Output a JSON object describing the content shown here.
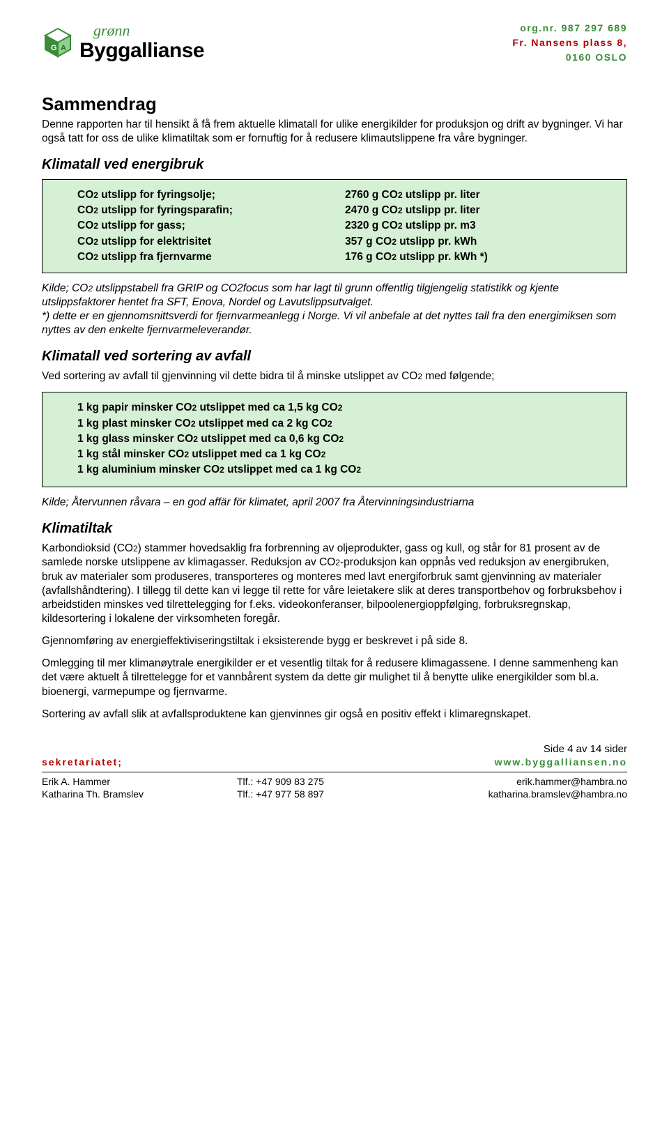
{
  "header": {
    "logo_script": "grønn",
    "logo_main": "Byggallianse",
    "org_line1": "org.nr. 987 297 689",
    "org_line2": "Fr. Nansens plass 8,",
    "org_line3": "0160 OSLO"
  },
  "title": "Sammendrag",
  "intro": "Denne rapporten har til hensikt å få frem aktuelle klimatall for ulike energikilder for produksjon og drift av bygninger.  Vi har også tatt for oss de ulike klimatiltak som er fornuftig for å redusere klimautslippene fra våre bygninger.",
  "sec1_title": "Klimatall ved energibruk",
  "box1": {
    "rows": [
      {
        "l": "CO",
        "l2": "2",
        "l3": " utslipp for fyringsolje;",
        "r1": "2760 g CO",
        "r2": "2",
        "r3": " utslipp pr. liter"
      },
      {
        "l": "CO",
        "l2": "2",
        "l3": " utslipp for fyringsparafin;",
        "r1": "2470 g CO",
        "r2": "2",
        "r3": " utslipp pr. liter"
      },
      {
        "l": "CO",
        "l2": "2",
        "l3": " utslipp for gass;",
        "r1": "2320 g CO",
        "r2": "2",
        "r3": " utslipp pr. m3"
      },
      {
        "l": "CO",
        "l2": "2",
        "l3": " utslipp for elektrisitet",
        "r1": "357 g CO",
        "r2": "2",
        "r3": " utslipp pr. kWh"
      },
      {
        "l": "CO",
        "l2": "2",
        "l3": " utslipp fra fjernvarme",
        "r1": "176 g CO",
        "r2": "2",
        "r3": " utslipp pr. kWh *)"
      }
    ]
  },
  "note1a": "Kilde; CO",
  "note1a2": "2",
  "note1b": " utslippstabell fra GRIP og CO2focus som har lagt til grunn offentlig tilgjengelig statistikk og kjente utslippsfaktorer hentet fra SFT, Enova, Nordel og Lavutslippsutvalget.",
  "note1c": "*) dette er en gjennomsnittsverdi for fjernvarmeanlegg i Norge.  Vi vil anbefale at det nyttes tall fra den energimiksen som nyttes av den enkelte fjernvarmeleverandør.",
  "sec2_title": "Klimatall ved sortering av avfall",
  "sec2_intro_a": "Ved sortering av avfall til gjenvinning vil dette bidra til å minske utslippet av CO",
  "sec2_intro_b": "2",
  "sec2_intro_c": " med følgende;",
  "box2": {
    "rows": [
      {
        "a": "1 kg papir minsker CO",
        "b": "2",
        "c": " utslippet med ca 1,5 kg CO",
        "d": "2"
      },
      {
        "a": "1 kg plast minsker CO",
        "b": "2",
        "c": " utslippet med ca 2 kg CO",
        "d": "2"
      },
      {
        "a": "1 kg glass minsker CO",
        "b": "2",
        "c": " utslippet med ca 0,6 kg CO",
        "d": "2"
      },
      {
        "a": "1 kg stål minsker CO",
        "b": "2",
        "c": " utslippet med ca 1 kg CO",
        "d": "2"
      },
      {
        "a": "1 kg aluminium minsker CO",
        "b": "2",
        "c": " utslippet med ca 1 kg CO",
        "d": "2"
      }
    ]
  },
  "note2": "Kilde; Återvunnen råvara – en god affär för klimatet, april 2007 fra Återvinningsindustriarna",
  "sec3_title": "Klimatiltak",
  "sec3_p1a": "Karbondioksid (CO",
  "sec3_p1a2": "2",
  "sec3_p1b": ") stammer hovedsaklig fra forbrenning av oljeprodukter, gass og kull, og står for 81 prosent av de samlede norske utslippene av klimagasser.  Reduksjon av CO",
  "sec3_p1b2": "2",
  "sec3_p1c": "-produksjon kan oppnås ved reduksjon av energibruken, bruk av materialer som produseres, transporteres og monteres med lavt energiforbruk samt gjenvinning av materialer (avfallshåndtering).  I tillegg til dette kan vi legge til rette for våre leietakere slik at deres transportbehov og forbruksbehov i arbeidstiden minskes ved tilrettelegging for f.eks. videokonferanser, bilpoolenergioppfølging, forbruksregnskap, kildesortering i lokalene der virksomheten foregår.",
  "sec3_p2": "Gjennomføring av energieffektiviseringstiltak i eksisterende bygg er beskrevet i på side 8.",
  "sec3_p3": "Omlegging til mer klimanøytrale energikilder er et vesentlig tiltak for å redusere klimagassene.  I denne sammenheng kan det være aktuelt å tilrettelegge for et vannbårent system da dette gir mulighet til å benytte ulike energikilder som bl.a. bioenergi, varmepumpe og fjernvarme.",
  "sec3_p4": "Sortering av avfall slik at avfallsproduktene kan gjenvinnes gir også en positiv effekt i klimaregnskapet.",
  "footer": {
    "page": "Side 4 av  14 sider",
    "sekr": "sekretariatet;",
    "web": "www.byggalliansen.no",
    "rows": [
      {
        "name": "Erik A. Hammer",
        "tlf": "Tlf.: +47 909 83 275",
        "mail": "erik.hammer@hambra.no"
      },
      {
        "name": "Katharina Th. Bramslev",
        "tlf": "Tlf.: +47 977 58 897",
        "mail": "katharina.bramslev@hambra.no"
      }
    ]
  },
  "colors": {
    "green": "#3a8b3a",
    "red": "#b00000",
    "box_bg": "#d5f0d5"
  }
}
